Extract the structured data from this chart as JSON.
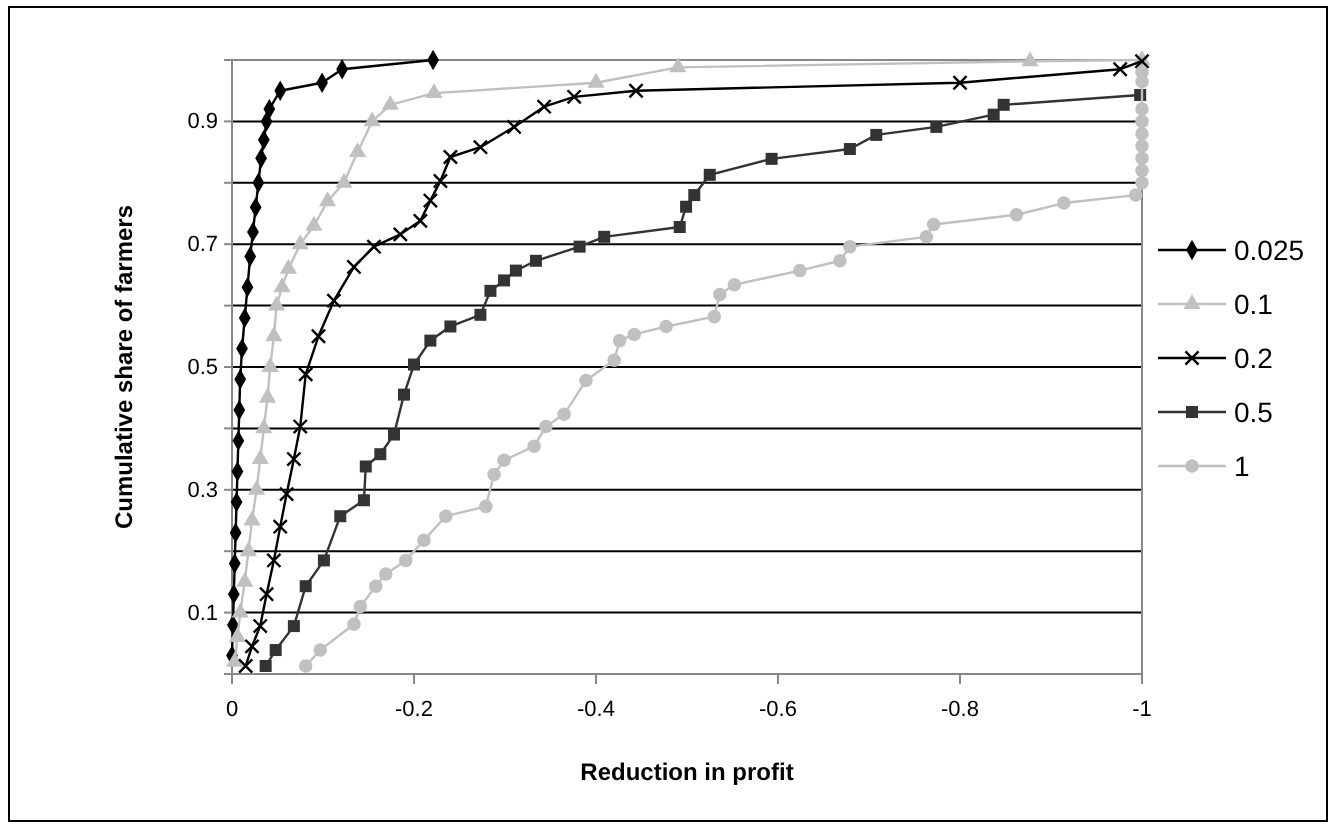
{
  "chart_data": {
    "type": "line",
    "xlabel": "Reduction in profit",
    "ylabel": "Cumulative share of farmers",
    "xlim": [
      0,
      -1
    ],
    "xticks": [
      0,
      -0.2,
      -0.4,
      -0.6,
      -0.8,
      -1
    ],
    "ylim": [
      0,
      1
    ],
    "yticks": [
      {
        "value": 0,
        "label": null
      },
      0.1,
      {
        "value": 0.2,
        "label": null
      },
      0.3,
      {
        "value": 0.4,
        "label": null
      },
      0.5,
      {
        "value": 0.6,
        "label": null
      },
      0.7,
      {
        "value": 0.8,
        "label": null
      },
      0.9,
      {
        "value": 1,
        "label": null
      }
    ],
    "grid": "y",
    "legend": "right",
    "series": [
      {
        "name": "0.025",
        "color": "#000000",
        "marker": "diamond",
        "x": [
          0,
          -0.001,
          -0.002,
          -0.003,
          -0.004,
          -0.005,
          -0.006,
          -0.007,
          -0.008,
          -0.009,
          -0.011,
          -0.014,
          -0.017,
          -0.02,
          -0.023,
          -0.026,
          -0.029,
          -0.032,
          -0.035,
          -0.038,
          -0.041,
          -0.053,
          -0.099,
          -0.121,
          -0.221
        ],
        "values": [
          0.03,
          0.08,
          0.13,
          0.18,
          0.23,
          0.28,
          0.33,
          0.38,
          0.43,
          0.48,
          0.53,
          0.58,
          0.63,
          0.68,
          0.72,
          0.76,
          0.8,
          0.84,
          0.87,
          0.9,
          0.92,
          0.95,
          0.963,
          0.985,
          1.0
        ]
      },
      {
        "name": "0.1",
        "color": "#c0c0c0",
        "marker": "triangle",
        "x": [
          -0.003,
          -0.006,
          -0.009,
          -0.014,
          -0.018,
          -0.022,
          -0.027,
          -0.031,
          -0.035,
          -0.039,
          -0.042,
          -0.046,
          -0.049,
          -0.055,
          -0.062,
          -0.075,
          -0.09,
          -0.105,
          -0.123,
          -0.138,
          -0.154,
          -0.174,
          -0.222,
          -0.4,
          -0.49,
          -0.877,
          -1
        ],
        "values": [
          0.02,
          0.06,
          0.1,
          0.15,
          0.2,
          0.25,
          0.3,
          0.35,
          0.4,
          0.45,
          0.5,
          0.55,
          0.6,
          0.63,
          0.66,
          0.7,
          0.73,
          0.77,
          0.8,
          0.85,
          0.9,
          0.927,
          0.946,
          0.963,
          0.988,
          0.998,
          1.0
        ]
      },
      {
        "name": "0.2",
        "color": "#000000",
        "marker": "cross",
        "x": [
          -0.015,
          -0.022,
          -0.031,
          -0.038,
          -0.046,
          -0.053,
          -0.06,
          -0.068,
          -0.075,
          -0.081,
          -0.095,
          -0.112,
          -0.134,
          -0.156,
          -0.185,
          -0.207,
          -0.218,
          -0.229,
          -0.24,
          -0.273,
          -0.31,
          -0.343,
          -0.376,
          -0.444,
          -0.8,
          -0.976,
          -1
        ],
        "values": [
          0.013,
          0.045,
          0.078,
          0.13,
          0.185,
          0.24,
          0.293,
          0.35,
          0.403,
          0.488,
          0.55,
          0.608,
          0.663,
          0.696,
          0.716,
          0.738,
          0.771,
          0.803,
          0.842,
          0.858,
          0.891,
          0.924,
          0.94,
          0.95,
          0.963,
          0.985,
          0.998
        ]
      },
      {
        "name": "0.5",
        "color": "#333333",
        "marker": "square",
        "x": [
          -0.037,
          -0.048,
          -0.068,
          -0.081,
          -0.101,
          -0.119,
          -0.145,
          -0.147,
          -0.163,
          -0.178,
          -0.189,
          -0.2,
          -0.218,
          -0.24,
          -0.273,
          -0.284,
          -0.299,
          -0.312,
          -0.334,
          -0.382,
          -0.409,
          -0.492,
          -0.499,
          -0.508,
          -0.525,
          -0.593,
          -0.679,
          -0.708,
          -0.774,
          -0.837,
          -0.848,
          -0.998
        ],
        "values": [
          0.013,
          0.039,
          0.078,
          0.143,
          0.185,
          0.257,
          0.283,
          0.338,
          0.358,
          0.39,
          0.455,
          0.504,
          0.543,
          0.566,
          0.585,
          0.624,
          0.641,
          0.657,
          0.673,
          0.696,
          0.712,
          0.728,
          0.761,
          0.78,
          0.813,
          0.839,
          0.855,
          0.878,
          0.891,
          0.911,
          0.927,
          0.943
        ]
      },
      {
        "name": "1",
        "color": "#c0c0c0",
        "marker": "circle",
        "x": [
          -0.081,
          -0.097,
          -0.134,
          -0.141,
          -0.158,
          -0.169,
          -0.191,
          -0.211,
          -0.235,
          -0.279,
          -0.288,
          -0.299,
          -0.332,
          -0.345,
          -0.365,
          -0.389,
          -0.42,
          -0.426,
          -0.442,
          -0.477,
          -0.53,
          -0.536,
          -0.552,
          -0.624,
          -0.668,
          -0.679,
          -0.763,
          -0.771,
          -0.862,
          -0.914,
          -0.993,
          -1,
          -1,
          -1,
          -1,
          -1,
          -1,
          -1,
          -1,
          -1
        ],
        "values": [
          0.013,
          0.039,
          0.081,
          0.11,
          0.143,
          0.163,
          0.185,
          0.218,
          0.257,
          0.273,
          0.325,
          0.348,
          0.371,
          0.403,
          0.423,
          0.478,
          0.511,
          0.543,
          0.553,
          0.566,
          0.582,
          0.618,
          0.634,
          0.657,
          0.673,
          0.696,
          0.712,
          0.732,
          0.748,
          0.767,
          0.78,
          0.8,
          0.82,
          0.84,
          0.86,
          0.88,
          0.9,
          0.92,
          0.965,
          0.98
        ]
      }
    ]
  }
}
